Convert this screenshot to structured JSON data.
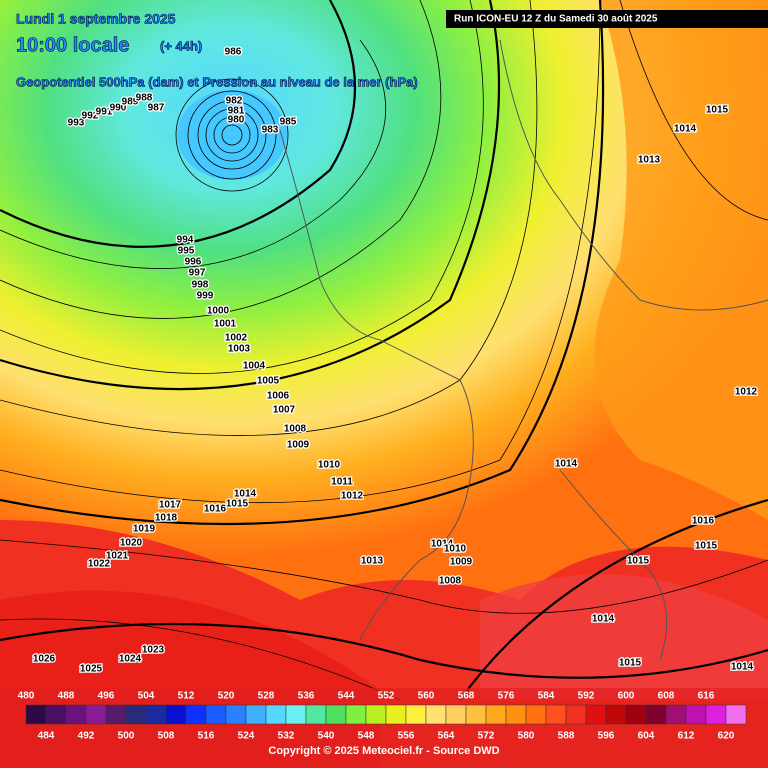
{
  "header": {
    "date": "Lundi 1 septembre 2025",
    "time": "10:00 locale",
    "lead": "(+ 44h)",
    "field": "Geopotentiel 500hPa (dam) et Pression au niveau de la mer (hPa)",
    "run": "Run ICON-EU 12 Z du Samedi 30 août 2025"
  },
  "isobar_labels": [
    986,
    982,
    981,
    980,
    983,
    985,
    993,
    992,
    991,
    990,
    989,
    988,
    987,
    994,
    995,
    996,
    997,
    998,
    999,
    1000,
    1001,
    1002,
    1003,
    1004,
    1005,
    1006,
    1007,
    1008,
    1009,
    1010,
    1011,
    1012,
    1014,
    1015,
    1016,
    1017,
    1018,
    1019,
    1020,
    1021,
    1022,
    1013,
    1014,
    1010,
    1009,
    1008,
    1026,
    1025,
    1024,
    1023,
    1015,
    1014,
    1013,
    1012,
    1014,
    1016,
    1015,
    1015,
    1014,
    1015,
    1014
  ],
  "legend": {
    "values": [
      480,
      484,
      488,
      492,
      496,
      500,
      504,
      508,
      512,
      516,
      520,
      524,
      528,
      532,
      536,
      540,
      544,
      548,
      552,
      556,
      560,
      564,
      568,
      572,
      576,
      580,
      584,
      588,
      592,
      596,
      600,
      604,
      608,
      612,
      616,
      620
    ],
    "colors": [
      "#2e0a44",
      "#4a0f62",
      "#6a137e",
      "#8a1c96",
      "#5a1a6a",
      "#2a2a7a",
      "#1a2aa0",
      "#0a10d0",
      "#1030ff",
      "#1a5cff",
      "#2a80ff",
      "#40b0ff",
      "#55d8ff",
      "#6af0f0",
      "#50e8a0",
      "#50e060",
      "#80f040",
      "#b8f020",
      "#e8f020",
      "#fff040",
      "#ffe070",
      "#ffd060",
      "#ffc040",
      "#ffa820",
      "#ff9010",
      "#ff7010",
      "#ff5020",
      "#f03020",
      "#e01010",
      "#c00808",
      "#a00010",
      "#800030",
      "#a01070",
      "#c010b0",
      "#e020e0",
      "#f070f0"
    ]
  },
  "copyright": "Copyright © 2025 Meteociel.fr - Source DWD"
}
